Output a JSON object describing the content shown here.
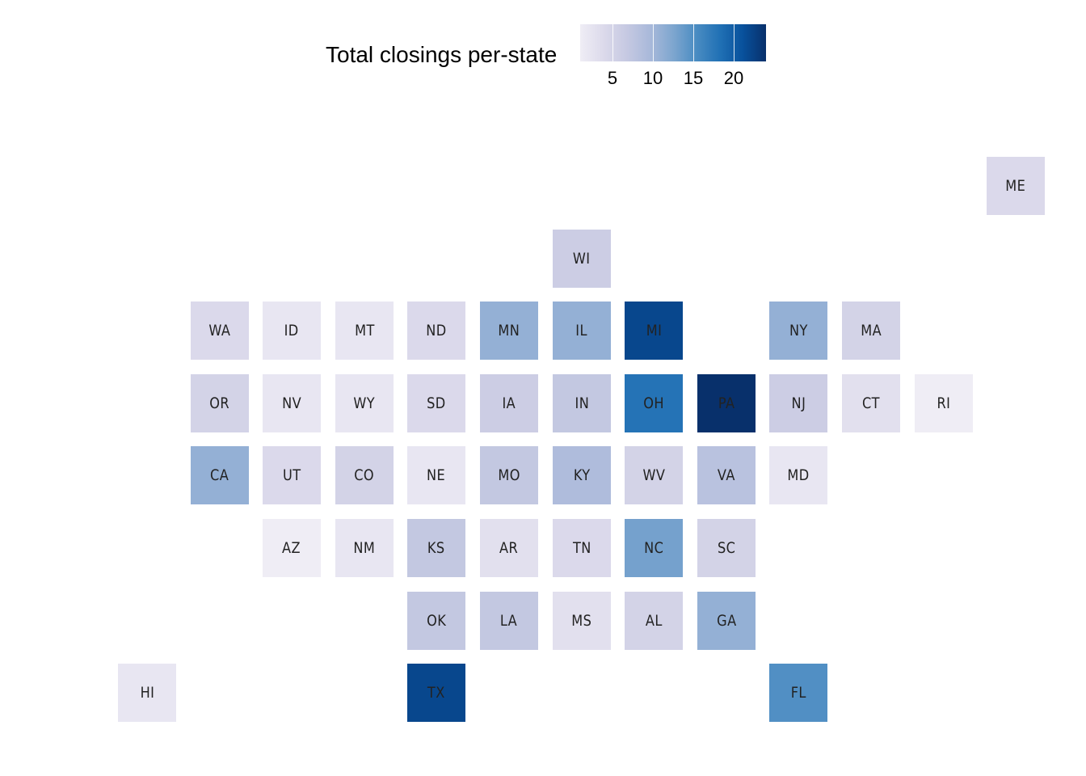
{
  "legend": {
    "title": "Total closings per-state",
    "ticks": [
      "5",
      "10",
      "15",
      "20"
    ],
    "tick_values": [
      5,
      10,
      15,
      20
    ],
    "range": [
      1,
      24
    ],
    "palette": [
      "#efedf5",
      "#dcdaeb",
      "#c6c9e2",
      "#a9b9da",
      "#7ea6cf",
      "#4a8cc2",
      "#2171b5",
      "#08519c",
      "#08306b"
    ]
  },
  "chart_data": {
    "type": "heatmap",
    "title": "",
    "legend_title": "Total closings per-state",
    "colorbar_ticks": [
      5,
      10,
      15,
      20
    ],
    "states": [
      {
        "abbr": "ME",
        "col": 12,
        "row": 0,
        "value": 4
      },
      {
        "abbr": "WI",
        "col": 6,
        "row": 1,
        "value": 6
      },
      {
        "abbr": "WA",
        "col": 1,
        "row": 2,
        "value": 4
      },
      {
        "abbr": "ID",
        "col": 2,
        "row": 2,
        "value": 2
      },
      {
        "abbr": "MT",
        "col": 3,
        "row": 2,
        "value": 2
      },
      {
        "abbr": "ND",
        "col": 4,
        "row": 2,
        "value": 4
      },
      {
        "abbr": "MN",
        "col": 5,
        "row": 2,
        "value": 11
      },
      {
        "abbr": "IL",
        "col": 6,
        "row": 2,
        "value": 11
      },
      {
        "abbr": "MI",
        "col": 7,
        "row": 2,
        "value": 22
      },
      {
        "abbr": "NY",
        "col": 9,
        "row": 2,
        "value": 11
      },
      {
        "abbr": "MA",
        "col": 10,
        "row": 2,
        "value": 5
      },
      {
        "abbr": "OR",
        "col": 1,
        "row": 3,
        "value": 5
      },
      {
        "abbr": "NV",
        "col": 2,
        "row": 3,
        "value": 2
      },
      {
        "abbr": "WY",
        "col": 3,
        "row": 3,
        "value": 2
      },
      {
        "abbr": "SD",
        "col": 4,
        "row": 3,
        "value": 4
      },
      {
        "abbr": "IA",
        "col": 5,
        "row": 3,
        "value": 6
      },
      {
        "abbr": "IN",
        "col": 6,
        "row": 3,
        "value": 7
      },
      {
        "abbr": "OH",
        "col": 7,
        "row": 3,
        "value": 18
      },
      {
        "abbr": "PA",
        "col": 8,
        "row": 3,
        "value": 24
      },
      {
        "abbr": "NJ",
        "col": 9,
        "row": 3,
        "value": 6
      },
      {
        "abbr": "CT",
        "col": 10,
        "row": 3,
        "value": 3
      },
      {
        "abbr": "RI",
        "col": 11,
        "row": 3,
        "value": 1
      },
      {
        "abbr": "CA",
        "col": 1,
        "row": 4,
        "value": 11
      },
      {
        "abbr": "UT",
        "col": 2,
        "row": 4,
        "value": 4
      },
      {
        "abbr": "CO",
        "col": 3,
        "row": 4,
        "value": 5
      },
      {
        "abbr": "NE",
        "col": 4,
        "row": 4,
        "value": 2
      },
      {
        "abbr": "MO",
        "col": 5,
        "row": 4,
        "value": 7
      },
      {
        "abbr": "KY",
        "col": 6,
        "row": 4,
        "value": 9
      },
      {
        "abbr": "WV",
        "col": 7,
        "row": 4,
        "value": 5
      },
      {
        "abbr": "VA",
        "col": 8,
        "row": 4,
        "value": 8
      },
      {
        "abbr": "MD",
        "col": 9,
        "row": 4,
        "value": 2
      },
      {
        "abbr": "AZ",
        "col": 2,
        "row": 5,
        "value": 1
      },
      {
        "abbr": "NM",
        "col": 3,
        "row": 5,
        "value": 2
      },
      {
        "abbr": "KS",
        "col": 4,
        "row": 5,
        "value": 7
      },
      {
        "abbr": "AR",
        "col": 5,
        "row": 5,
        "value": 3
      },
      {
        "abbr": "TN",
        "col": 6,
        "row": 5,
        "value": 4
      },
      {
        "abbr": "NC",
        "col": 7,
        "row": 5,
        "value": 13
      },
      {
        "abbr": "SC",
        "col": 8,
        "row": 5,
        "value": 5
      },
      {
        "abbr": "OK",
        "col": 4,
        "row": 6,
        "value": 7
      },
      {
        "abbr": "LA",
        "col": 5,
        "row": 6,
        "value": 7
      },
      {
        "abbr": "MS",
        "col": 6,
        "row": 6,
        "value": 3
      },
      {
        "abbr": "AL",
        "col": 7,
        "row": 6,
        "value": 5
      },
      {
        "abbr": "GA",
        "col": 8,
        "row": 6,
        "value": 11
      },
      {
        "abbr": "HI",
        "col": 0,
        "row": 7,
        "value": 2
      },
      {
        "abbr": "TX",
        "col": 4,
        "row": 7,
        "value": 22
      },
      {
        "abbr": "FL",
        "col": 9,
        "row": 7,
        "value": 15
      }
    ]
  }
}
